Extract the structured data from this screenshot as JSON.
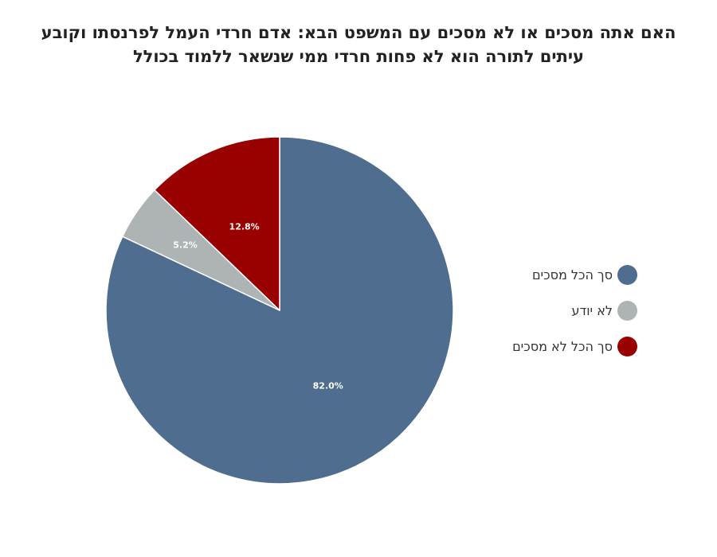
{
  "title_lines": [
    "האם אתה מסכים או לא מסכים עם המשפט הבא: אדם חרדי העמל לפרנסתו וקובע",
    "עיתים לתורה הוא לא פחות חרדי ממי שנשאר ללמוד בכולל"
  ],
  "chart_data": {
    "type": "pie",
    "title": "האם אתה מסכים או לא מסכים עם המשפט הבא: אדם חרדי העמל לפרנסתו וקובע עיתים לתורה הוא לא פחות חרדי ממי שנשאר ללמוד בכולל",
    "legend_position": "right",
    "slices": [
      {
        "label": "סך הכל מסכים",
        "value": 82.0,
        "display": "82.0%",
        "color": "#4f6d8f"
      },
      {
        "label": "לא יודע",
        "value": 5.2,
        "display": "5.2%",
        "color": "#aeb3b3"
      },
      {
        "label": "סך הכל לא מסכים",
        "value": 12.8,
        "display": "12.8%",
        "color": "#990000"
      }
    ]
  },
  "colors": {
    "slice_border": "#ffffff",
    "data_label": "#ffffff",
    "title": "#222222"
  }
}
